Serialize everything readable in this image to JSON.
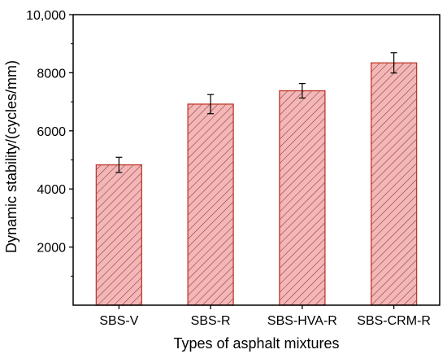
{
  "chart_data": {
    "type": "bar",
    "title": "",
    "xlabel": "Types of asphalt mixtures",
    "ylabel": "Dynamic stability/(cycles/mm)",
    "categories": [
      "SBS-V",
      "SBS-R",
      "SBS-HVA-R",
      "SBS-CRM-R"
    ],
    "values": [
      4830,
      6920,
      7380,
      8340
    ],
    "error": [
      260,
      330,
      250,
      350
    ],
    "ylim": [
      0,
      10000
    ],
    "yticks": [
      2000,
      4000,
      6000,
      8000,
      10000
    ],
    "ytick_labels": [
      "2000",
      "4000",
      "6000",
      "8000",
      "10,000"
    ],
    "grid": false,
    "legend": "none",
    "bar_fill": "#f4b6b6",
    "bar_stroke": "#c0392b",
    "hatch": "diagonal"
  }
}
